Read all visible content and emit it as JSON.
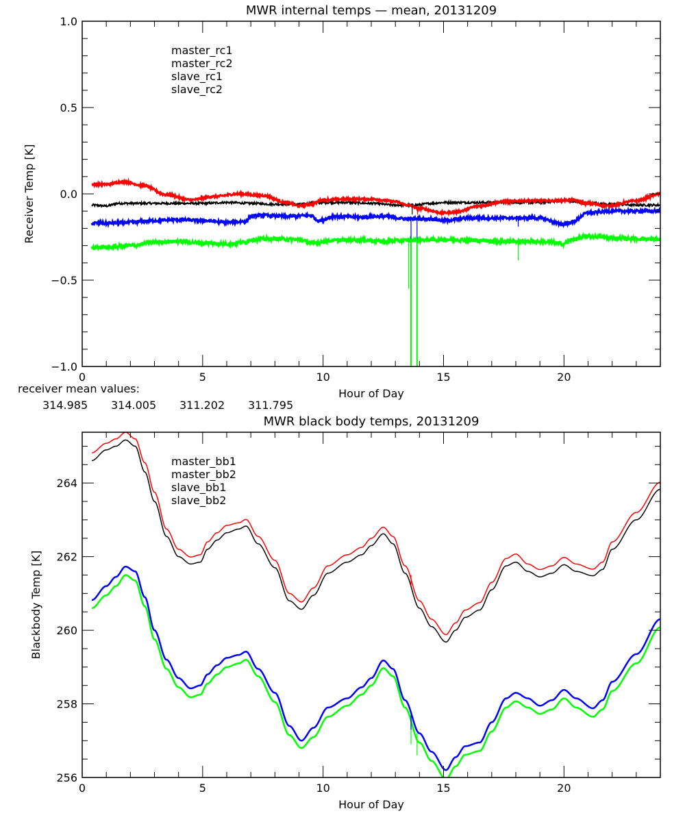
{
  "chart_data": [
    {
      "type": "line",
      "title": "MWR internal temps — mean, 20131209",
      "xlabel": "Hour of Day",
      "ylabel": "Receiver Temp [K]",
      "xlim": [
        0,
        24
      ],
      "ylim": [
        -1.0,
        1.0
      ],
      "xticks": [
        0,
        5,
        10,
        15,
        20
      ],
      "xtick_labels": [
        "0",
        "5",
        "10",
        "15",
        "20"
      ],
      "yticks": [
        -1.0,
        -0.5,
        0.0,
        0.5,
        1.0
      ],
      "ytick_labels": [
        "−1.0",
        "−0.5",
        "0.0",
        "0.5",
        "1.0"
      ],
      "legend_position": "top-left",
      "grid": false,
      "series": [
        {
          "name": "master_rc1",
          "color": "#000000",
          "x": [
            0.4,
            1.0,
            1.5,
            2.0,
            3.0,
            4.0,
            5.0,
            6.0,
            7.0,
            8.0,
            9.0,
            10.0,
            11.0,
            12.0,
            13.0,
            13.8,
            14.5,
            15.0,
            16.0,
            17.0,
            18.0,
            19.0,
            20.0,
            21.0,
            22.0,
            23.0,
            24.0
          ],
          "y": [
            -0.065,
            -0.07,
            -0.055,
            -0.055,
            -0.055,
            -0.055,
            -0.055,
            -0.05,
            -0.055,
            -0.06,
            -0.06,
            -0.05,
            -0.05,
            -0.055,
            -0.065,
            -0.065,
            -0.055,
            -0.05,
            -0.05,
            -0.05,
            -0.05,
            -0.05,
            -0.04,
            -0.055,
            -0.06,
            -0.065,
            -0.065
          ]
        },
        {
          "name": "master_rc2",
          "color": "#ff0000",
          "x": [
            0.4,
            1.0,
            1.7,
            2.5,
            3.5,
            4.5,
            5.5,
            6.5,
            7.5,
            8.5,
            9.0,
            9.5,
            10.0,
            11.0,
            12.0,
            13.0,
            13.5,
            14.0,
            15.0,
            15.5,
            16.5,
            17.5,
            18.5,
            19.5,
            20.3,
            21.0,
            21.8,
            23.0,
            24.0
          ],
          "y": [
            0.055,
            0.055,
            0.07,
            0.05,
            -0.005,
            -0.035,
            -0.015,
            0.0,
            -0.01,
            -0.05,
            -0.07,
            -0.06,
            -0.035,
            -0.03,
            -0.03,
            -0.045,
            -0.065,
            -0.085,
            -0.11,
            -0.105,
            -0.07,
            -0.045,
            -0.04,
            -0.04,
            -0.035,
            -0.055,
            -0.07,
            -0.04,
            0.0
          ]
        },
        {
          "name": "slave_rc1",
          "color": "#0000ff",
          "x": [
            0.4,
            1.0,
            2.0,
            3.0,
            4.0,
            5.0,
            6.0,
            6.8,
            7.0,
            7.5,
            8.5,
            9.5,
            9.8,
            10.5,
            11.5,
            12.5,
            13.5,
            14.5,
            15.0,
            16.0,
            17.0,
            18.0,
            19.0,
            19.9,
            20.3,
            21.0,
            22.0,
            23.0,
            24.0
          ],
          "y": [
            -0.17,
            -0.17,
            -0.165,
            -0.155,
            -0.15,
            -0.155,
            -0.165,
            -0.16,
            -0.13,
            -0.125,
            -0.13,
            -0.125,
            -0.155,
            -0.13,
            -0.135,
            -0.13,
            -0.145,
            -0.145,
            -0.155,
            -0.14,
            -0.14,
            -0.14,
            -0.14,
            -0.175,
            -0.165,
            -0.11,
            -0.1,
            -0.1,
            -0.1
          ]
        },
        {
          "name": "slave_rc2",
          "color": "#00ff00",
          "x": [
            0.4,
            1.0,
            2.0,
            3.0,
            4.0,
            5.0,
            6.0,
            6.8,
            7.0,
            8.0,
            9.0,
            9.5,
            10.5,
            11.5,
            12.5,
            13.5,
            14.5,
            15.5,
            16.5,
            17.5,
            18.5,
            19.5,
            19.9,
            20.5,
            21.0,
            22.0,
            23.0,
            24.0
          ],
          "y": [
            -0.31,
            -0.31,
            -0.3,
            -0.28,
            -0.275,
            -0.285,
            -0.29,
            -0.28,
            -0.265,
            -0.26,
            -0.265,
            -0.285,
            -0.27,
            -0.265,
            -0.275,
            -0.27,
            -0.265,
            -0.265,
            -0.27,
            -0.275,
            -0.275,
            -0.28,
            -0.29,
            -0.26,
            -0.245,
            -0.255,
            -0.26,
            -0.265
          ]
        }
      ],
      "spikes": [
        {
          "series": "slave_rc2",
          "x": 13.55,
          "from": -0.27,
          "to": -0.55
        },
        {
          "series": "slave_rc2",
          "x": 13.65,
          "from": -0.27,
          "to": -1.0
        },
        {
          "series": "slave_rc2",
          "x": 13.9,
          "from": -0.27,
          "to": -1.0
        },
        {
          "series": "slave_rc1",
          "x": 13.65,
          "from": -0.145,
          "to": -0.26
        },
        {
          "series": "slave_rc1",
          "x": 13.9,
          "from": -0.145,
          "to": -0.26
        },
        {
          "series": "master_rc1",
          "x": 13.7,
          "from": -0.065,
          "to": -0.12
        },
        {
          "series": "master_rc2",
          "x": 13.92,
          "from": -0.08,
          "to": -0.12
        },
        {
          "series": "slave_rc1",
          "x": 18.1,
          "from": -0.14,
          "to": -0.19
        },
        {
          "series": "slave_rc2",
          "x": 18.1,
          "from": -0.275,
          "to": -0.385
        }
      ]
    },
    {
      "type": "line",
      "title": "MWR black body temps, 20131209",
      "xlabel": "Hour of Day",
      "ylabel": "Blackbody Temp [K]",
      "xlim": [
        0,
        24
      ],
      "ylim": [
        256,
        265.38
      ],
      "xticks": [
        0,
        5,
        10,
        15,
        20
      ],
      "xtick_labels": [
        "0",
        "5",
        "10",
        "15",
        "20"
      ],
      "yticks": [
        256,
        258,
        260,
        262,
        264
      ],
      "ytick_labels": [
        "256",
        "258",
        "260",
        "262",
        "264"
      ],
      "legend_position": "top-left",
      "grid": false,
      "series": [
        {
          "name": "master_bb1",
          "color": "#000000",
          "x": [
            0.4,
            1.0,
            1.4,
            1.8,
            2.2,
            2.6,
            3.0,
            3.5,
            4.0,
            4.5,
            4.9,
            5.2,
            5.6,
            6.0,
            6.5,
            6.8,
            7.3,
            8.0,
            8.6,
            9.1,
            9.6,
            10.2,
            11.0,
            11.6,
            12.0,
            12.5,
            12.9,
            13.4,
            14.0,
            14.5,
            15.1,
            15.5,
            15.9,
            16.5,
            17.0,
            17.6,
            18.0,
            18.5,
            19.0,
            19.5,
            20.0,
            20.5,
            21.2,
            21.6,
            22.0,
            23.0,
            24.0
          ],
          "y": [
            264.61,
            264.9,
            265.0,
            265.17,
            265.0,
            264.3,
            263.5,
            262.55,
            262.0,
            261.8,
            261.85,
            262.2,
            262.45,
            262.65,
            262.75,
            262.83,
            262.35,
            261.7,
            260.8,
            260.57,
            260.95,
            261.55,
            261.85,
            262.05,
            262.3,
            262.62,
            262.35,
            261.55,
            260.6,
            260.1,
            259.68,
            260.0,
            260.35,
            260.55,
            261.1,
            261.75,
            261.85,
            261.6,
            261.45,
            261.55,
            261.78,
            261.6,
            261.48,
            261.65,
            262.2,
            263.0,
            263.83
          ]
        },
        {
          "name": "master_bb2",
          "color": "#ff0000",
          "x": [
            0.4,
            1.0,
            1.4,
            1.8,
            2.2,
            2.6,
            3.0,
            3.5,
            4.0,
            4.5,
            4.9,
            5.2,
            5.6,
            6.0,
            6.5,
            6.8,
            7.3,
            8.0,
            8.6,
            9.1,
            9.6,
            10.2,
            11.0,
            11.6,
            12.0,
            12.5,
            12.9,
            13.4,
            14.0,
            14.5,
            15.1,
            15.5,
            15.9,
            16.5,
            17.0,
            17.6,
            18.0,
            18.5,
            19.0,
            19.5,
            20.0,
            20.5,
            21.2,
            21.6,
            22.0,
            23.0,
            24.0
          ],
          "y": [
            264.82,
            265.08,
            265.2,
            265.38,
            265.2,
            264.55,
            263.75,
            262.75,
            262.2,
            261.99,
            262.05,
            262.4,
            262.65,
            262.85,
            262.92,
            263.01,
            262.55,
            261.9,
            261.0,
            260.77,
            261.15,
            261.75,
            262.05,
            262.25,
            262.5,
            262.8,
            262.55,
            261.75,
            260.8,
            260.3,
            259.88,
            260.2,
            260.55,
            260.75,
            261.3,
            261.95,
            262.07,
            261.8,
            261.65,
            261.75,
            261.98,
            261.8,
            261.66,
            261.85,
            262.4,
            263.2,
            264.02
          ]
        },
        {
          "name": "slave_bb1",
          "color": "#0000ff",
          "x": [
            0.4,
            1.0,
            1.4,
            1.8,
            2.2,
            2.6,
            3.0,
            3.5,
            4.0,
            4.5,
            4.9,
            5.2,
            5.6,
            6.0,
            6.5,
            6.8,
            7.3,
            8.0,
            8.6,
            9.1,
            9.6,
            10.2,
            11.0,
            11.6,
            12.0,
            12.5,
            12.9,
            13.4,
            14.0,
            14.5,
            15.1,
            15.5,
            15.9,
            16.5,
            17.0,
            17.6,
            18.0,
            18.5,
            19.0,
            19.5,
            20.0,
            20.5,
            21.2,
            21.6,
            22.0,
            23.0,
            24.0
          ],
          "y": [
            260.82,
            261.2,
            261.45,
            261.73,
            261.6,
            260.9,
            260.0,
            259.2,
            258.7,
            258.42,
            258.5,
            258.8,
            259.05,
            259.25,
            259.33,
            259.42,
            258.95,
            258.3,
            257.4,
            257.0,
            257.35,
            257.9,
            258.15,
            258.45,
            258.7,
            259.18,
            258.95,
            258.1,
            257.2,
            256.7,
            256.2,
            256.55,
            256.85,
            256.95,
            257.5,
            258.15,
            258.3,
            258.15,
            257.95,
            258.1,
            258.38,
            258.15,
            257.88,
            258.1,
            258.6,
            259.35,
            260.3
          ]
        },
        {
          "name": "slave_bb2",
          "color": "#00ff00",
          "x": [
            0.4,
            1.0,
            1.4,
            1.8,
            2.2,
            2.6,
            3.0,
            3.5,
            4.0,
            4.5,
            4.9,
            5.2,
            5.6,
            6.0,
            6.5,
            6.8,
            7.3,
            8.0,
            8.6,
            9.1,
            9.6,
            10.2,
            11.0,
            11.6,
            12.0,
            12.5,
            12.9,
            13.4,
            14.0,
            14.5,
            15.1,
            15.5,
            15.9,
            16.5,
            17.0,
            17.6,
            18.0,
            18.5,
            19.0,
            19.5,
            20.0,
            20.5,
            21.2,
            21.6,
            22.0,
            23.0,
            24.0
          ],
          "y": [
            260.6,
            260.95,
            261.2,
            261.5,
            261.35,
            260.65,
            259.75,
            258.95,
            258.45,
            258.18,
            258.25,
            258.55,
            258.8,
            259.0,
            259.1,
            259.2,
            258.75,
            258.05,
            257.15,
            256.8,
            257.1,
            257.65,
            257.95,
            258.25,
            258.5,
            258.97,
            258.75,
            257.9,
            256.95,
            256.45,
            255.95,
            256.3,
            256.62,
            256.72,
            257.25,
            257.9,
            258.07,
            257.9,
            257.73,
            257.85,
            258.15,
            257.9,
            257.65,
            257.85,
            258.35,
            259.1,
            260.08
          ]
        }
      ],
      "spikes": [
        {
          "series": "slave_bb2",
          "x": 13.65,
          "from": 257.6,
          "to": 256.9
        },
        {
          "series": "slave_bb2",
          "x": 13.9,
          "from": 257.2,
          "to": 256.6
        },
        {
          "series": "slave_bb1",
          "x": 13.65,
          "from": 257.7,
          "to": 257.3
        },
        {
          "series": "master_bb2",
          "x": 13.65,
          "from": 261.5,
          "to": 261.2
        }
      ]
    }
  ],
  "annotation": {
    "label": "receiver mean values:",
    "values": [
      {
        "text": "314.985",
        "color": "#000000"
      },
      {
        "text": "314.005",
        "color": "#ff0000"
      },
      {
        "text": "311.202",
        "color": "#0000ff"
      },
      {
        "text": "311.795",
        "color": "#00ff00"
      }
    ]
  }
}
